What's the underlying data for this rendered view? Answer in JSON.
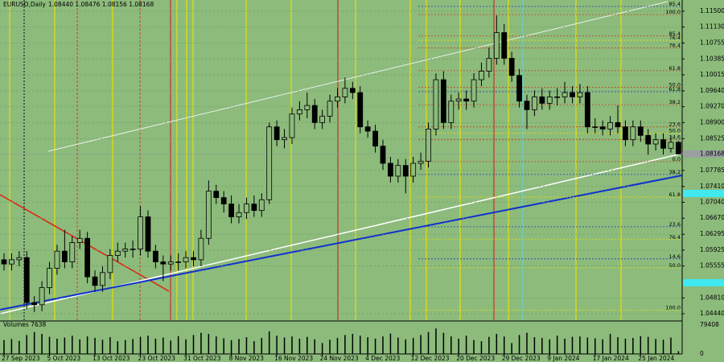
{
  "chart_data": {
    "type": "candlestick",
    "title": "EURUSD,Daily",
    "ohlc_header": "1.08440 1.08476 1.08156 1.08168",
    "categories": [
      "27 Sep 2023",
      null,
      null,
      null,
      null,
      null,
      "5 Oct 2023",
      null,
      null,
      null,
      null,
      null,
      "13 Oct 2023",
      null,
      null,
      null,
      null,
      null,
      "23 Oct 2023",
      null,
      null,
      null,
      null,
      null,
      "31 Oct 2023",
      null,
      null,
      null,
      null,
      null,
      "8 Nov 2023",
      null,
      null,
      null,
      null,
      null,
      "16 Nov 2023",
      null,
      null,
      null,
      null,
      null,
      "24 Nov 2023",
      null,
      null,
      null,
      null,
      null,
      "4 Dec 2023",
      null,
      null,
      null,
      null,
      null,
      "12 Dec 2023",
      null,
      null,
      null,
      null,
      null,
      "20 Dec 2023",
      null,
      null,
      null,
      null,
      null,
      "29 Dec 2023",
      null,
      null,
      null,
      null,
      null,
      "9 Jan 2024",
      null,
      null,
      null,
      null,
      null,
      "17 Jan 2024",
      null,
      null,
      null,
      null,
      null,
      "25 Jan 2024",
      null,
      null,
      null,
      null,
      null
    ],
    "open": [
      1.057,
      1.056,
      1.057,
      1.0575,
      1.047,
      1.0465,
      1.0505,
      1.055,
      1.059,
      1.0565,
      1.061,
      1.062,
      1.053,
      1.051,
      1.054,
      1.058,
      1.059,
      1.0595,
      1.0595,
      1.067,
      1.059,
      1.0565,
      1.056,
      1.0565,
      1.0565,
      1.0575,
      1.057,
      1.062,
      1.073,
      1.0715,
      1.07,
      1.067,
      1.068,
      1.07,
      1.0685,
      1.071,
      1.088,
      1.085,
      1.0855,
      1.091,
      1.092,
      1.093,
      1.089,
      1.0905,
      1.094,
      1.095,
      1.097,
      1.096,
      1.088,
      1.087,
      1.0835,
      1.0795,
      1.0765,
      1.079,
      1.0765,
      1.0795,
      1.08,
      1.0875,
      1.099,
      1.089,
      1.094,
      1.0945,
      1.094,
      1.099,
      1.101,
      1.104,
      1.11,
      1.104,
      1.1,
      1.094,
      1.092,
      1.095,
      1.0935,
      1.095,
      1.095,
      1.096,
      1.095,
      1.096,
      1.088,
      1.088,
      1.0875,
      1.089,
      1.088,
      1.085,
      1.088,
      1.086,
      1.084,
      1.085,
      1.083,
      1.0844
    ],
    "high": [
      1.0585,
      1.0585,
      1.059,
      1.059,
      1.0485,
      1.052,
      1.0565,
      1.0605,
      1.064,
      1.0625,
      1.064,
      1.0635,
      1.0545,
      1.0555,
      1.0595,
      1.061,
      1.061,
      1.0615,
      1.0695,
      1.0685,
      1.0605,
      1.058,
      1.058,
      1.0585,
      1.059,
      1.059,
      1.064,
      1.0755,
      1.0745,
      1.073,
      1.072,
      1.07,
      1.0715,
      1.072,
      1.0725,
      1.089,
      1.0895,
      1.0875,
      1.0925,
      1.094,
      1.096,
      1.0945,
      1.092,
      1.0955,
      1.097,
      1.0995,
      1.0985,
      1.0975,
      1.0895,
      1.0885,
      1.085,
      1.081,
      1.0805,
      1.0805,
      1.081,
      1.082,
      1.089,
      1.1005,
      1.101,
      1.0955,
      1.096,
      1.0965,
      1.1005,
      1.103,
      1.1065,
      1.114,
      1.112,
      1.1055,
      1.1015,
      1.0955,
      1.0965,
      1.097,
      1.0965,
      1.097,
      1.0985,
      1.0975,
      1.098,
      1.0975,
      1.09,
      1.0895,
      1.0905,
      1.093,
      1.0895,
      1.0895,
      1.0895,
      1.0875,
      1.0865,
      1.0865,
      1.086,
      1.08476
    ],
    "low": [
      1.0545,
      1.0545,
      1.0555,
      1.0455,
      1.0448,
      1.045,
      1.049,
      1.0535,
      1.055,
      1.055,
      1.0595,
      1.0515,
      1.0495,
      1.0495,
      1.0525,
      1.0565,
      1.0575,
      1.0575,
      1.058,
      1.0575,
      1.055,
      1.052,
      1.0545,
      1.0545,
      1.055,
      1.0555,
      1.0555,
      1.0605,
      1.07,
      1.068,
      1.0655,
      1.0655,
      1.0665,
      1.067,
      1.067,
      1.07,
      1.0835,
      1.083,
      1.084,
      1.0895,
      1.09,
      1.0875,
      1.0875,
      1.089,
      1.0925,
      1.0935,
      1.0945,
      1.0865,
      1.0855,
      1.082,
      1.078,
      1.075,
      1.075,
      1.0725,
      1.075,
      1.078,
      1.0785,
      1.086,
      1.0875,
      1.0875,
      1.092,
      1.092,
      1.0925,
      1.0975,
      1.0995,
      1.1025,
      1.1025,
      1.0985,
      1.0925,
      1.0875,
      1.0905,
      1.092,
      1.092,
      1.093,
      1.0935,
      1.0935,
      1.0935,
      1.0865,
      1.0865,
      1.086,
      1.086,
      1.0865,
      1.0835,
      1.0835,
      1.0845,
      1.0815,
      1.0825,
      1.0815,
      1.082,
      1.08156
    ],
    "close": [
      1.056,
      1.057,
      1.0575,
      1.047,
      1.0465,
      1.0505,
      1.055,
      1.059,
      1.0565,
      1.061,
      1.062,
      1.053,
      1.051,
      1.054,
      1.058,
      1.059,
      1.0595,
      1.0595,
      1.067,
      1.059,
      1.0565,
      1.056,
      1.0565,
      1.0565,
      1.0575,
      1.057,
      1.062,
      1.073,
      1.0715,
      1.07,
      1.067,
      1.068,
      1.07,
      1.0685,
      1.071,
      1.088,
      1.085,
      1.0855,
      1.091,
      1.092,
      1.093,
      1.089,
      1.0905,
      1.094,
      1.095,
      1.097,
      1.096,
      1.088,
      1.087,
      1.0835,
      1.0795,
      1.0765,
      1.079,
      1.0765,
      1.0795,
      1.08,
      1.0875,
      1.099,
      1.089,
      1.094,
      1.0945,
      1.094,
      1.099,
      1.101,
      1.104,
      1.11,
      1.104,
      1.1,
      1.094,
      1.092,
      1.095,
      1.0935,
      1.095,
      1.095,
      1.096,
      1.095,
      1.096,
      1.088,
      1.088,
      1.0875,
      1.089,
      1.088,
      1.085,
      1.088,
      1.086,
      1.084,
      1.085,
      1.083,
      1.0844,
      1.08168
    ],
    "ylim": [
      1.0429,
      1.1176
    ],
    "yticks": [
      {
        "value": 1.115,
        "label": "1.11500"
      },
      {
        "value": 1.1113,
        "label": "1.11130"
      },
      {
        "value": 1.10755,
        "label": "1.10755"
      },
      {
        "value": 1.10385,
        "label": "1.10385"
      },
      {
        "value": 1.10015,
        "label": "1.10015"
      },
      {
        "value": 1.0964,
        "label": "1.09640"
      },
      {
        "value": 1.0927,
        "label": "1.09270"
      },
      {
        "value": 1.089,
        "label": "1.08900"
      },
      {
        "value": 1.08525,
        "label": "1.08525"
      },
      {
        "value": 1.07785,
        "label": "1.07785"
      },
      {
        "value": 1.0741,
        "label": "1.07410"
      },
      {
        "value": 1.0704,
        "label": "1.07040"
      },
      {
        "value": 1.0667,
        "label": "1.06670"
      },
      {
        "value": 1.06295,
        "label": "1.06295"
      },
      {
        "value": 1.05925,
        "label": "1.05925"
      },
      {
        "value": 1.05555,
        "label": "1.05555"
      },
      {
        "value": 1.0481,
        "label": "1.04810"
      },
      {
        "value": 1.0444,
        "label": "1.04440"
      }
    ],
    "last_price": {
      "value": 1.08168,
      "label": "1.08168"
    },
    "fib_levels": [
      {
        "label": "100.0",
        "value": 1.1142,
        "color": "#c8401f"
      },
      {
        "label": "85.4",
        "value": 1.1092,
        "color": "#c8401f"
      },
      {
        "label": "76.4",
        "value": 1.1064,
        "color": "#c8401f"
      },
      {
        "label": "61.8",
        "value": 1.1011,
        "color": "#c8401f"
      },
      {
        "label": "50.0",
        "value": 1.0972,
        "color": "#c8401f"
      },
      {
        "label": "38.2",
        "value": 1.0932,
        "color": "#c8401f"
      },
      {
        "label": "23.6",
        "value": 1.088,
        "color": "#c8401f"
      },
      {
        "label": "14.6",
        "value": 1.085,
        "color": "#c8401f"
      },
      {
        "label": "0.0",
        "value": 1.0799,
        "color": "#c8401f"
      },
      {
        "label": "85.4",
        "value": 1.1161,
        "color": "#2040c0"
      },
      {
        "label": "61.8",
        "value": 1.0962,
        "color": "#2040c0"
      },
      {
        "label": "38.2",
        "value": 1.0769,
        "color": "#2040c0"
      },
      {
        "label": "23.6",
        "value": 1.0647,
        "color": "#2040c0"
      },
      {
        "label": "14.6",
        "value": 1.0572,
        "color": "#2040c0"
      },
      {
        "label": "76.4",
        "value": 1.1082,
        "color": "#e8e000"
      },
      {
        "label": "50.0",
        "value": 1.0865,
        "color": "#e8e000"
      },
      {
        "label": "61.8",
        "value": 1.0716,
        "color": "#e8e000"
      },
      {
        "label": "76.4",
        "value": 1.0617,
        "color": "#e8e000"
      },
      {
        "label": "50.0",
        "value": 1.0551,
        "color": "#e8e000"
      },
      {
        "label": "100.0",
        "value": 1.0452,
        "color": "#e8e000"
      }
    ],
    "volume_title": "Volumes 7638",
    "volume": [
      38000,
      41000,
      36000,
      52000,
      60000,
      55000,
      47000,
      42000,
      45000,
      50000,
      40000,
      48000,
      44000,
      39000,
      46000,
      35000,
      38000,
      41000,
      47000,
      50000,
      42000,
      45000,
      37000,
      49000,
      40000,
      52000,
      58000,
      55000,
      48000,
      43000,
      38000,
      41000,
      46000,
      35000,
      44000,
      62000,
      50000,
      45000,
      48000,
      42000,
      47000,
      40000,
      30000,
      39000,
      44000,
      52000,
      55000,
      50000,
      46000,
      42000,
      48000,
      56000,
      45000,
      40000,
      44000,
      52000,
      60000,
      70000,
      58000,
      48000,
      42000,
      50000,
      38000,
      35000,
      47000,
      55000,
      48000,
      30000,
      52000,
      58000,
      46000,
      44000,
      40000,
      50000,
      42000,
      47000,
      48000,
      45000,
      43000,
      40000,
      55000,
      46000,
      42000,
      44000,
      49000,
      47000,
      41000,
      39000,
      45000,
      7638
    ],
    "volume_ylim": [
      0,
      79408
    ],
    "volume_yticks": [
      0,
      79408
    ]
  }
}
